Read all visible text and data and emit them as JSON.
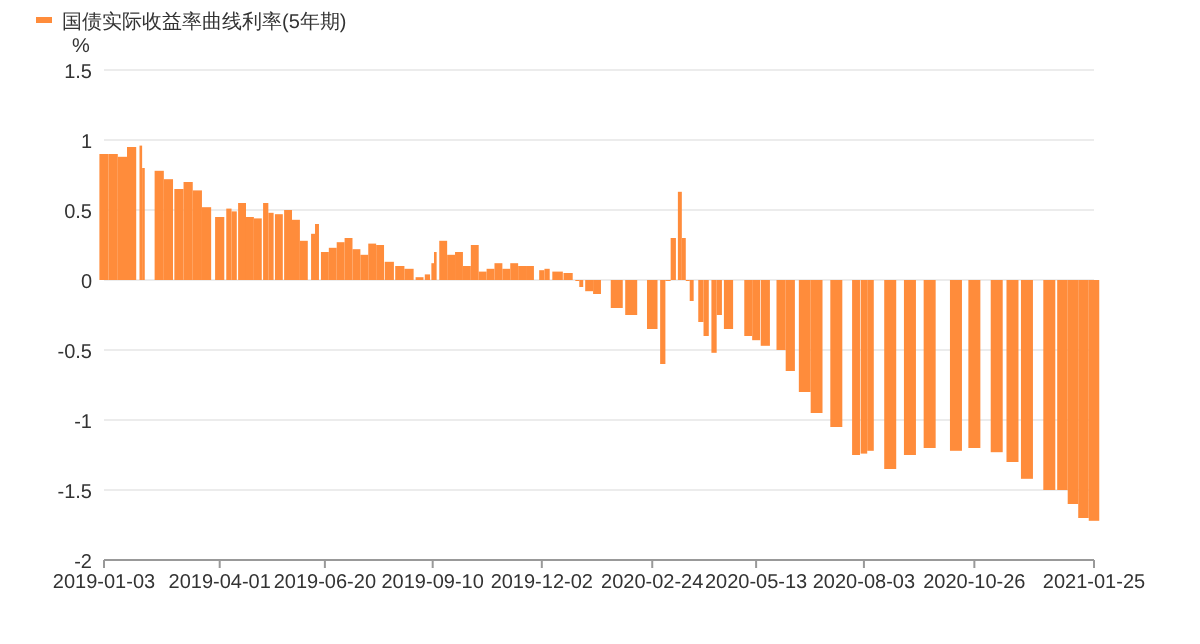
{
  "chart_data": {
    "type": "bar",
    "ylabel": "%",
    "legend": "top left",
    "grid": "y",
    "xlim": [
      "2019-01-03",
      "2021-01-25"
    ],
    "xticks": [
      "2019-01-03",
      "2019-04-01",
      "2019-06-20",
      "2019-09-10",
      "2019-12-02",
      "2020-02-24",
      "2020-05-13",
      "2020-08-03",
      "2020-10-26",
      "2021-01-25"
    ],
    "ylim": [
      -2,
      1.5
    ],
    "yticks": [
      -2,
      -1.5,
      -1,
      -0.5,
      0,
      0.5,
      1,
      1.5
    ],
    "series": [
      {
        "name": "国债实际收益率曲线利率(5年期)",
        "color": "#ff8c3b",
        "x": [
          "2019-01-03",
          "2019-01-10",
          "2019-01-17",
          "2019-01-24",
          "2019-01-31",
          "2019-02-02",
          "2019-02-14",
          "2019-02-21",
          "2019-03-01",
          "2019-03-08",
          "2019-03-15",
          "2019-03-22",
          "2019-04-01",
          "2019-04-08",
          "2019-04-12",
          "2019-04-18",
          "2019-04-24",
          "2019-04-30",
          "2019-05-06",
          "2019-05-10",
          "2019-05-16",
          "2019-05-23",
          "2019-05-29",
          "2019-06-04",
          "2019-06-11",
          "2019-06-14",
          "2019-06-20",
          "2019-06-26",
          "2019-07-02",
          "2019-07-08",
          "2019-07-14",
          "2019-07-20",
          "2019-07-26",
          "2019-08-01",
          "2019-08-08",
          "2019-08-16",
          "2019-08-23",
          "2019-08-31",
          "2019-09-06",
          "2019-09-10",
          "2019-09-12",
          "2019-09-18",
          "2019-09-24",
          "2019-09-30",
          "2019-10-06",
          "2019-10-12",
          "2019-10-18",
          "2019-10-24",
          "2019-10-30",
          "2019-11-05",
          "2019-11-11",
          "2019-11-17",
          "2019-11-23",
          "2019-12-02",
          "2019-12-06",
          "2019-12-14",
          "2019-12-22",
          "2019-12-29",
          "2020-01-01",
          "2020-01-07",
          "2020-01-13",
          "2020-01-28",
          "2020-02-08",
          "2020-02-24",
          "2020-03-03",
          "2020-03-07",
          "2020-03-11",
          "2020-03-16",
          "2020-03-19",
          "2020-03-22",
          "2020-03-25",
          "2020-04-01",
          "2020-04-05",
          "2020-04-11",
          "2020-04-15",
          "2020-04-22",
          "2020-05-07",
          "2020-05-13",
          "2020-05-20",
          "2020-06-01",
          "2020-06-08",
          "2020-06-19",
          "2020-06-28",
          "2020-07-13",
          "2020-07-28",
          "2020-08-03",
          "2020-08-08",
          "2020-08-23",
          "2020-09-07",
          "2020-09-22",
          "2020-10-12",
          "2020-10-26",
          "2020-11-12",
          "2020-11-24",
          "2020-12-05",
          "2020-12-22",
          "2021-01-01",
          "2021-01-09",
          "2021-01-17",
          "2021-01-25"
        ],
        "values": [
          0.9,
          0.9,
          0.88,
          0.95,
          0.96,
          0.8,
          0.78,
          0.72,
          0.65,
          0.7,
          0.64,
          0.52,
          0.45,
          0.51,
          0.49,
          0.55,
          0.45,
          0.44,
          0.55,
          0.48,
          0.47,
          0.5,
          0.43,
          0.28,
          0.33,
          0.4,
          0.2,
          0.23,
          0.27,
          0.3,
          0.22,
          0.18,
          0.26,
          0.25,
          0.13,
          0.1,
          0.08,
          0.02,
          0.04,
          0.12,
          0.2,
          0.28,
          0.18,
          0.2,
          0.1,
          0.25,
          0.06,
          0.08,
          0.12,
          0.08,
          0.12,
          0.1,
          0.1,
          0.07,
          0.08,
          0.06,
          0.05,
          0.0,
          -0.05,
          -0.08,
          -0.1,
          -0.2,
          -0.25,
          -0.35,
          -0.6,
          0.0,
          0.3,
          0.63,
          0.3,
          0.0,
          -0.15,
          -0.3,
          -0.4,
          -0.52,
          -0.25,
          -0.35,
          -0.4,
          -0.43,
          -0.47,
          -0.5,
          -0.65,
          -0.8,
          -0.95,
          -1.05,
          -1.25,
          -1.24,
          -1.22,
          -1.35,
          -1.25,
          -1.2,
          -1.22,
          -1.2,
          -1.23,
          -1.3,
          -1.42,
          -1.5,
          -1.5,
          -1.6,
          -1.7,
          -1.72
        ]
      }
    ]
  }
}
